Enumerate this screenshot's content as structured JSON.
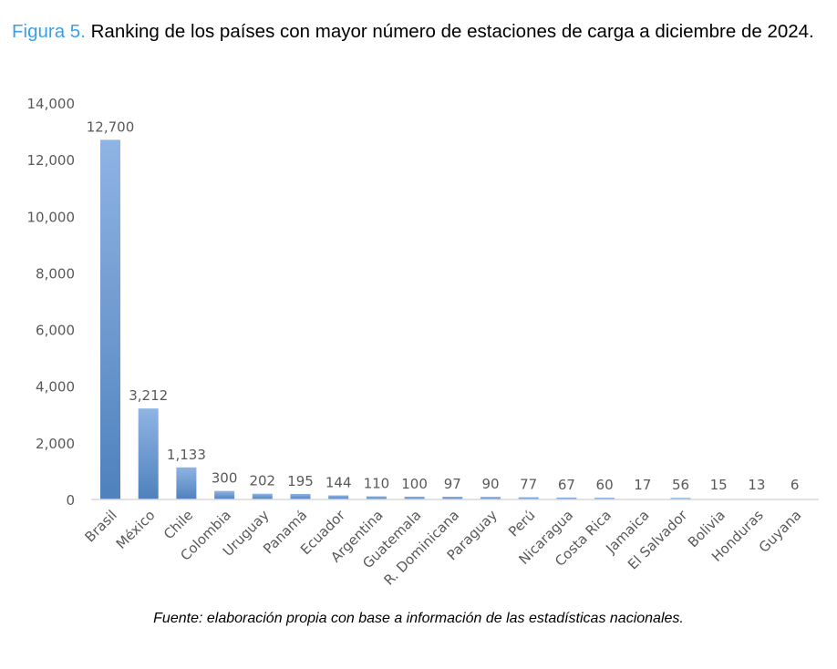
{
  "figure_label": "Figura 5.",
  "figure_title": "Ranking de los países con mayor número de estaciones de carga a diciembre de 2024.",
  "source": "Fuente: elaboración propia con base a información de las estadísticas nacionales.",
  "chart_data": {
    "type": "bar",
    "title": "",
    "xlabel": "",
    "ylabel": "",
    "ylim": [
      0,
      14000
    ],
    "yticks": [
      0,
      2000,
      4000,
      6000,
      8000,
      10000,
      12000,
      14000
    ],
    "ytick_labels": [
      "0",
      "2,000",
      "4,000",
      "6,000",
      "8,000",
      "10,000",
      "12,000",
      "14,000"
    ],
    "grid": false,
    "categories": [
      "Brasil",
      "México",
      "Chile",
      "Colombia",
      "Uruguay",
      "Panamá",
      "Ecuador",
      "Argentina",
      "Guatemala",
      "R. Dominicana",
      "Paraguay",
      "Perú",
      "Nicaragua",
      "Costa Rica",
      "Jamaica",
      "El Salvador",
      "Bolivia",
      "Honduras",
      "Guyana"
    ],
    "values": [
      12700,
      3212,
      1133,
      300,
      202,
      195,
      144,
      110,
      100,
      97,
      90,
      77,
      67,
      60,
      17,
      56,
      15,
      13,
      6
    ],
    "data_labels": [
      "12,700",
      "3,212",
      "1,133",
      "300",
      "202",
      "195",
      "144",
      "110",
      "100",
      "97",
      "90",
      "77",
      "67",
      "60",
      "17",
      "56",
      "15",
      "13",
      "6"
    ],
    "bar_color_top": "#8fb4e3",
    "bar_color_bottom": "#4f81bd"
  }
}
